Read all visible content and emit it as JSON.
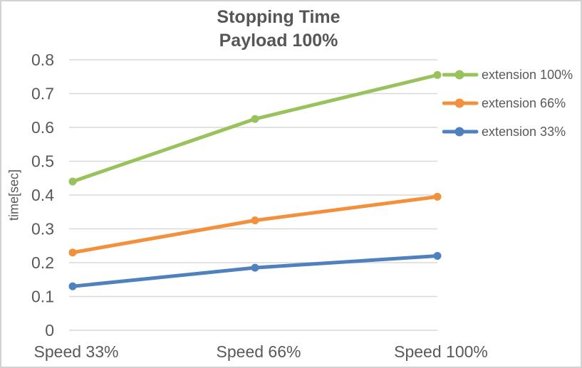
{
  "chart_data": {
    "type": "line",
    "title_lines": [
      "Stopping Time",
      "Payload 100%"
    ],
    "title": "Stopping Time — Payload 100%",
    "ylabel": "time[sec]",
    "xlabel": "",
    "categories": [
      "Speed 33%",
      "Speed 66%",
      "Speed 100%"
    ],
    "series": [
      {
        "name": "extension 100%",
        "color": "#9AC25C",
        "values": [
          0.44,
          0.625,
          0.755
        ]
      },
      {
        "name": "extension 66%",
        "color": "#F2903C",
        "values": [
          0.23,
          0.325,
          0.395
        ]
      },
      {
        "name": "extension 33%",
        "color": "#4E81BD",
        "values": [
          0.13,
          0.185,
          0.22
        ]
      }
    ],
    "ylim": [
      0,
      0.8
    ],
    "ytick_labels": [
      "0",
      "0.1",
      "0.2",
      "0.3",
      "0.4",
      "0.5",
      "0.6",
      "0.7",
      "0.8"
    ],
    "grid": "horizontal",
    "legend_position": "right",
    "colors": {
      "grid": "#D9D9D9",
      "axis_text": "#595959",
      "title_text": "#565656",
      "frame_border": "#D2D2D2",
      "background": "#FFFFFF"
    }
  }
}
